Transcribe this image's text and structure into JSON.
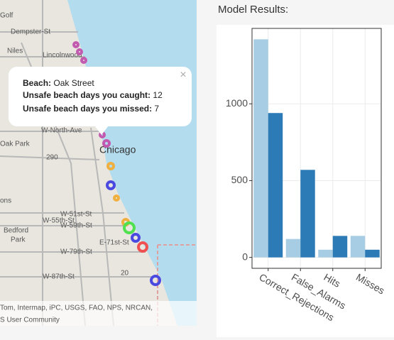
{
  "map": {
    "labels": [
      "Golf",
      "Dempster-St",
      "Niles",
      "Lincolnwood",
      "W-North-Ave",
      "Oak Park",
      "290",
      "Chicago",
      "ons",
      "W-51st-St",
      "W-55th-St",
      "W-59th-St",
      "Bedford",
      "Park",
      "E-71st-St",
      "W-79th-St",
      "W-87th-St",
      "20"
    ],
    "popup": {
      "close": "×",
      "beach_label": "Beach:",
      "beach": "Oak Street",
      "caught_label": "Unsafe beach days you caught:",
      "caught": 12,
      "missed_label": "Unsafe beach days you missed:",
      "missed": 7
    },
    "attribution": [
      "Tom, Intermap, iPC, USGS, FAO, NPS, NRCAN,",
      "S User Community"
    ]
  },
  "heading": "Model Results:",
  "chart_data": {
    "type": "bar",
    "categories": [
      "Correct_Rejections",
      "False_Alarms",
      "Hits",
      "Misses"
    ],
    "series": [
      {
        "color": "#a6cde3",
        "values": [
          1420,
          120,
          50,
          140
        ]
      },
      {
        "color": "#2c7bb6",
        "values": [
          940,
          570,
          140,
          50
        ]
      }
    ],
    "ylim": [
      -71,
      1491
    ],
    "yticks": [
      0,
      500,
      1000
    ],
    "grid": true
  }
}
